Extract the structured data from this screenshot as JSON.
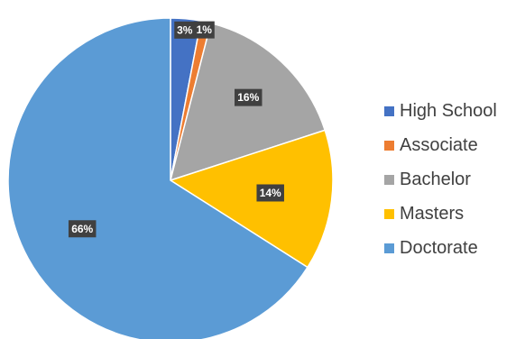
{
  "chart_data": {
    "type": "pie",
    "title": "",
    "categories": [
      "High School",
      "Associate",
      "Bachelor",
      "Masters",
      "Doctorate"
    ],
    "values": [
      3,
      1,
      16,
      14,
      66
    ],
    "data_labels": [
      "3%",
      "1%",
      "16%",
      "14%",
      "66%"
    ],
    "colors": [
      "#4472C4",
      "#ED7D31",
      "#A5A5A5",
      "#FFC000",
      "#5B9BD5"
    ],
    "legend_position": "right",
    "start_angle": "12 o'clock",
    "direction": "clockwise"
  }
}
